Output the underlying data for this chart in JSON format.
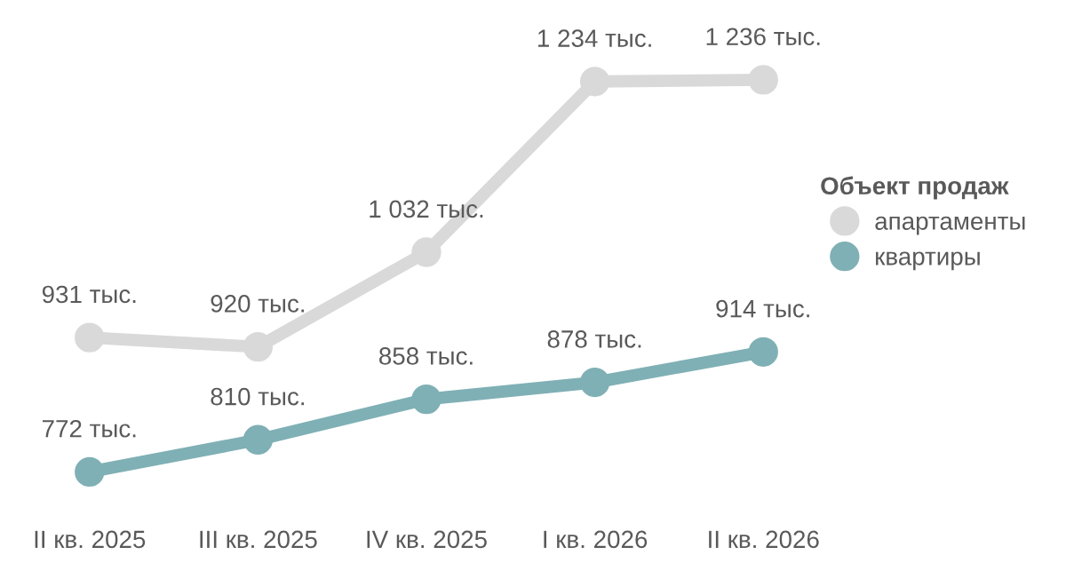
{
  "chart_data": {
    "type": "line",
    "categories": [
      "II кв. 2025",
      "III кв. 2025",
      "IV кв. 2025",
      "I кв. 2026",
      "II кв. 2026"
    ],
    "legend_title": "Объект продаж",
    "legend": "right",
    "marker": "circle",
    "line_style": "solid",
    "grid": false,
    "series": [
      {
        "name": "апартаменты",
        "color": "#d9d9d9",
        "values": [
          931,
          920,
          1032,
          1234,
          1236
        ],
        "value_labels": [
          "931 тыс.",
          "920 тыс.",
          "1 032 тыс.",
          "1 234 тыс.",
          "1 236 тыс."
        ]
      },
      {
        "name": "квартиры",
        "color": "#7fb0b5",
        "values": [
          772,
          810,
          858,
          878,
          914
        ],
        "value_labels": [
          "772 тыс.",
          "810 тыс.",
          "858 тыс.",
          "878 тыс.",
          "914 тыс."
        ]
      }
    ]
  }
}
